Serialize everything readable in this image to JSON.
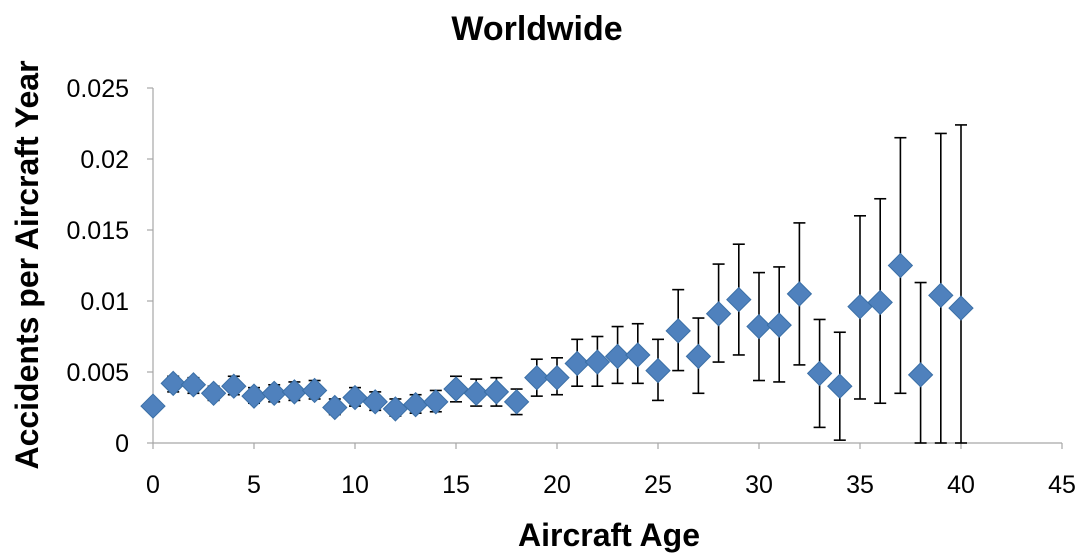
{
  "chart_data": {
    "type": "scatter",
    "title": "Worldwide",
    "xlabel": "Aircraft Age",
    "ylabel": "Accidents per Aircraft Year",
    "xlim": [
      0,
      45
    ],
    "ylim": [
      0,
      0.025
    ],
    "x_ticks": [
      "0",
      "5",
      "10",
      "15",
      "20",
      "25",
      "30",
      "35",
      "40",
      "45"
    ],
    "y_ticks": [
      "0",
      "0.005",
      "0.01",
      "0.015",
      "0.02",
      "0.025"
    ],
    "grid": false,
    "legend": "none",
    "marker": "diamond",
    "marker_color": "#4f81bd",
    "error_bar_color": "#000000",
    "points": [
      {
        "x": 0,
        "y": 0.0026,
        "lo": 0.0023,
        "hi": 0.0029
      },
      {
        "x": 1,
        "y": 0.0042,
        "lo": 0.0036,
        "hi": 0.0047
      },
      {
        "x": 2,
        "y": 0.0041,
        "lo": 0.0035,
        "hi": 0.0046
      },
      {
        "x": 3,
        "y": 0.0035,
        "lo": 0.003,
        "hi": 0.004
      },
      {
        "x": 4,
        "y": 0.004,
        "lo": 0.0034,
        "hi": 0.0047
      },
      {
        "x": 5,
        "y": 0.0033,
        "lo": 0.0028,
        "hi": 0.0039
      },
      {
        "x": 6,
        "y": 0.0035,
        "lo": 0.0029,
        "hi": 0.0041
      },
      {
        "x": 7,
        "y": 0.0036,
        "lo": 0.003,
        "hi": 0.0043
      },
      {
        "x": 8,
        "y": 0.0037,
        "lo": 0.0031,
        "hi": 0.0044
      },
      {
        "x": 9,
        "y": 0.0025,
        "lo": 0.002,
        "hi": 0.0031
      },
      {
        "x": 10,
        "y": 0.0032,
        "lo": 0.0026,
        "hi": 0.0039
      },
      {
        "x": 11,
        "y": 0.0029,
        "lo": 0.0023,
        "hi": 0.0036
      },
      {
        "x": 12,
        "y": 0.0024,
        "lo": 0.0019,
        "hi": 0.0031
      },
      {
        "x": 13,
        "y": 0.0027,
        "lo": 0.0021,
        "hi": 0.0034
      },
      {
        "x": 14,
        "y": 0.0029,
        "lo": 0.0022,
        "hi": 0.0037
      },
      {
        "x": 15,
        "y": 0.0038,
        "lo": 0.0029,
        "hi": 0.0047
      },
      {
        "x": 16,
        "y": 0.0035,
        "lo": 0.0026,
        "hi": 0.0045
      },
      {
        "x": 17,
        "y": 0.0036,
        "lo": 0.0026,
        "hi": 0.0046
      },
      {
        "x": 18,
        "y": 0.0029,
        "lo": 0.002,
        "hi": 0.0038
      },
      {
        "x": 19,
        "y": 0.0046,
        "lo": 0.0033,
        "hi": 0.0059
      },
      {
        "x": 20,
        "y": 0.0046,
        "lo": 0.0034,
        "hi": 0.006
      },
      {
        "x": 21,
        "y": 0.0056,
        "lo": 0.004,
        "hi": 0.0073
      },
      {
        "x": 22,
        "y": 0.0057,
        "lo": 0.004,
        "hi": 0.0075
      },
      {
        "x": 23,
        "y": 0.0061,
        "lo": 0.0042,
        "hi": 0.0082
      },
      {
        "x": 24,
        "y": 0.0062,
        "lo": 0.0042,
        "hi": 0.0084
      },
      {
        "x": 25,
        "y": 0.0051,
        "lo": 0.003,
        "hi": 0.0073
      },
      {
        "x": 26,
        "y": 0.0079,
        "lo": 0.0051,
        "hi": 0.0108
      },
      {
        "x": 27,
        "y": 0.0061,
        "lo": 0.0035,
        "hi": 0.0088
      },
      {
        "x": 28,
        "y": 0.0091,
        "lo": 0.0057,
        "hi": 0.0126
      },
      {
        "x": 29,
        "y": 0.0101,
        "lo": 0.0062,
        "hi": 0.014
      },
      {
        "x": 30,
        "y": 0.0082,
        "lo": 0.0044,
        "hi": 0.012
      },
      {
        "x": 31,
        "y": 0.0083,
        "lo": 0.0043,
        "hi": 0.0124
      },
      {
        "x": 32,
        "y": 0.0105,
        "lo": 0.0055,
        "hi": 0.0155
      },
      {
        "x": 33,
        "y": 0.0049,
        "lo": 0.0011,
        "hi": 0.0087
      },
      {
        "x": 34,
        "y": 0.004,
        "lo": 0.0002,
        "hi": 0.0078
      },
      {
        "x": 35,
        "y": 0.0096,
        "lo": 0.0031,
        "hi": 0.016
      },
      {
        "x": 36,
        "y": 0.0099,
        "lo": 0.0028,
        "hi": 0.0172
      },
      {
        "x": 37,
        "y": 0.0125,
        "lo": 0.0035,
        "hi": 0.0215
      },
      {
        "x": 38,
        "y": 0.0048,
        "lo": 0.0,
        "hi": 0.0113
      },
      {
        "x": 39,
        "y": 0.0104,
        "lo": 0.0,
        "hi": 0.0218
      },
      {
        "x": 40,
        "y": 0.0095,
        "lo": 0.0,
        "hi": 0.0224
      }
    ]
  }
}
